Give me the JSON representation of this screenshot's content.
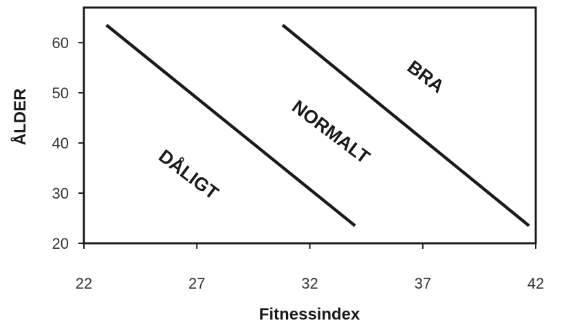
{
  "chart_data": {
    "type": "line",
    "xlabel": "Fitnessindex",
    "ylabel": "ÅLDER",
    "xlim": [
      22,
      42
    ],
    "ylim": [
      20,
      67
    ],
    "x_ticks": [
      22,
      27,
      32,
      37,
      42
    ],
    "y_ticks": [
      20,
      30,
      40,
      50,
      60
    ],
    "grid": false,
    "series": [
      {
        "x": [
          23,
          34
        ],
        "y": [
          63.5,
          23.5
        ]
      },
      {
        "x": [
          30.8,
          41.7
        ],
        "y": [
          63.5,
          23.5
        ]
      }
    ],
    "annotations": [
      {
        "text": "DÅLIGT",
        "x": 26.6,
        "y": 33.5,
        "angle": -37
      },
      {
        "text": "NORMALT",
        "x": 32.9,
        "y": 42.0,
        "angle": -37
      },
      {
        "text": "BRA",
        "x": 37.1,
        "y": 53.0,
        "angle": -37
      }
    ],
    "colors": {
      "line": "#1a1a1a",
      "frame": "#1a1a1a",
      "text": "#1a1a1a"
    }
  }
}
